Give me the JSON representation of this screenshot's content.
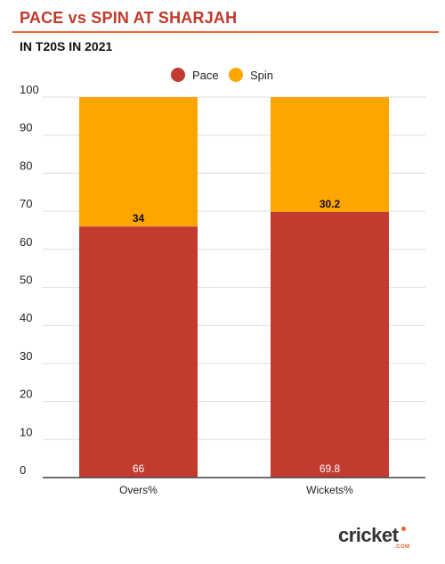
{
  "header": {
    "title": "PACE vs SPIN AT SHARJAH",
    "subtitle": "IN T20S IN 2021"
  },
  "brand": {
    "name": "cricket",
    "suffix": ".COM",
    "accent_color": "#e8632b"
  },
  "colors": {
    "title": "#c0392b",
    "rule": "#e8632b",
    "grid": "#dddddd",
    "axis": "#444444",
    "pace": "#c23b2e",
    "spin": "#ffa500"
  },
  "chart_data": {
    "type": "bar",
    "stacked": true,
    "categories": [
      "Overs%",
      "Wickets%"
    ],
    "series": [
      {
        "name": "Pace",
        "values": [
          66,
          69.8
        ],
        "color": "#c23b2e"
      },
      {
        "name": "Spin",
        "values": [
          34,
          30.2
        ],
        "color": "#ffa500"
      }
    ],
    "ylim": [
      0,
      100
    ],
    "yticks": [
      "0",
      "10",
      "20",
      "30",
      "40",
      "50",
      "60",
      "70",
      "80",
      "90",
      "100"
    ],
    "data_labels": {
      "Pace": [
        "66",
        "69.8"
      ],
      "Spin": [
        "34",
        "30.2"
      ]
    },
    "legend_position": "top-center",
    "grid": true
  }
}
